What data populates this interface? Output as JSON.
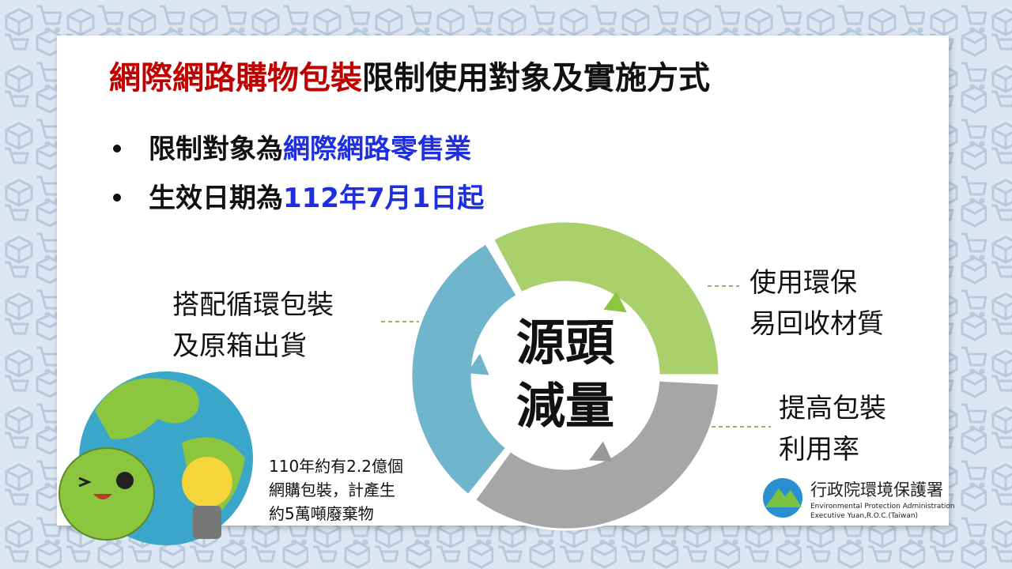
{
  "title": {
    "highlight": "網際網路購物包裝",
    "rest": "限制使用對象及實施方式"
  },
  "bullets": [
    {
      "text": "限制對象為",
      "highlight": "網際網路零售業"
    },
    {
      "text": "生效日期為",
      "highlight": "112年7月1日起"
    }
  ],
  "cycle": {
    "center": [
      "源頭",
      "減量"
    ],
    "items": [
      {
        "lines": [
          "搭配循環包裝",
          "及原箱出貨"
        ]
      },
      {
        "lines": [
          "使用環保",
          "易回收材質"
        ]
      },
      {
        "lines": [
          "提高包裝",
          "利用率"
        ]
      }
    ]
  },
  "note": [
    "110年約有2.2億個",
    "網購包裝，計產生",
    "約5萬噸廢棄物"
  ],
  "logo": {
    "name": "行政院環境保護署",
    "english": [
      "Environmental Protection Administration",
      "Executive Yuan,R.O.C.(Taiwan)"
    ]
  }
}
